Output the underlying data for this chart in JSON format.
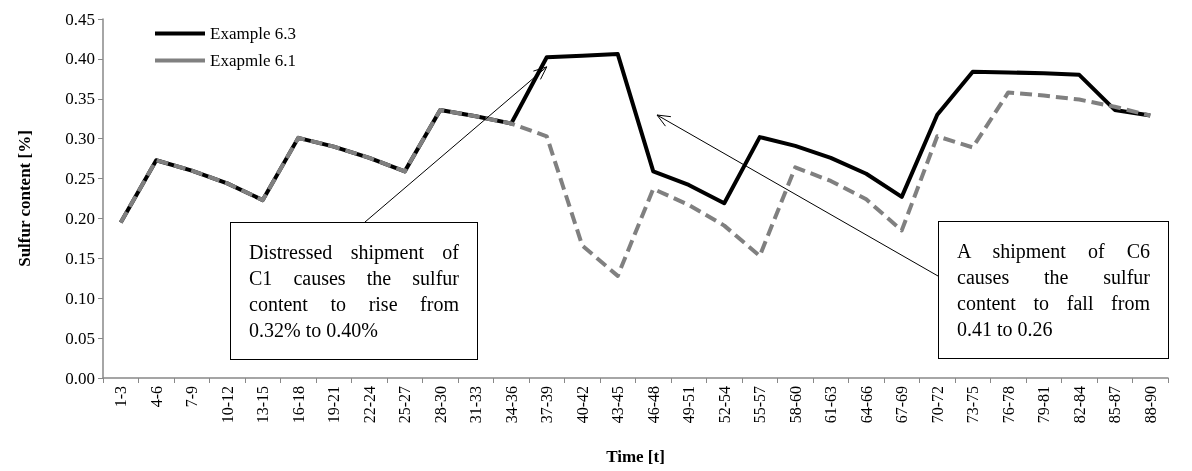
{
  "chart_data": {
    "type": "line",
    "xlabel": "Time [t]",
    "ylabel": "Sulfur content [%]",
    "categories": [
      "1-3",
      "4-6",
      "7-9",
      "10-12",
      "13-15",
      "16-18",
      "19-21",
      "22-24",
      "25-27",
      "28-30",
      "31-33",
      "34-36",
      "37-39",
      "40-42",
      "43-45",
      "46-48",
      "49-51",
      "52-54",
      "55-57",
      "58-60",
      "61-63",
      "64-66",
      "67-69",
      "70-72",
      "73-75",
      "76-78",
      "79-81",
      "82-84",
      "85-87",
      "88-90"
    ],
    "series": [
      {
        "name": "Example 6.3",
        "color": "#000000",
        "line_style": "solid",
        "values": [
          0.195,
          0.273,
          0.26,
          0.244,
          0.223,
          0.301,
          0.29,
          0.276,
          0.259,
          0.336,
          0.328,
          0.319,
          0.402,
          0.404,
          0.406,
          0.259,
          0.242,
          0.219,
          0.302,
          0.291,
          0.276,
          0.256,
          0.227,
          0.33,
          0.384,
          0.383,
          0.382,
          0.38,
          0.336,
          0.329
        ]
      },
      {
        "name": "Exapmle 6.1",
        "color": "#808080",
        "line_style": "dashed",
        "values": [
          0.195,
          0.273,
          0.26,
          0.244,
          0.223,
          0.301,
          0.29,
          0.276,
          0.259,
          0.336,
          0.328,
          0.319,
          0.303,
          0.166,
          0.128,
          0.237,
          0.217,
          0.191,
          0.153,
          0.264,
          0.247,
          0.224,
          0.185,
          0.303,
          0.289,
          0.358,
          0.354,
          0.349,
          0.34,
          0.329
        ]
      }
    ],
    "ylim": [
      0,
      0.45
    ],
    "yticks": [
      {
        "value": 0,
        "label": "0.00"
      },
      {
        "value": 0.05,
        "label": "0.05"
      },
      {
        "value": 0.1,
        "label": "0.10"
      },
      {
        "value": 0.15,
        "label": "0.15"
      },
      {
        "value": 0.2,
        "label": "0.20"
      },
      {
        "value": 0.25,
        "label": "0.25"
      },
      {
        "value": 0.3,
        "label": "0.30"
      },
      {
        "value": 0.35,
        "label": "0.35"
      },
      {
        "value": 0.4,
        "label": "0.40"
      },
      {
        "value": 0.45,
        "label": "0.45"
      }
    ],
    "grid": false,
    "legend": "top left",
    "marker": "none",
    "annotations": [
      {
        "text": "Distressed shipment of C1 causes the sulfur content to rise from 0.32% to 0.40%",
        "x": "37-39",
        "y": 0.39
      },
      "A shipment of C6 causes the sulfur content to fall from 0.41 to 0.26"
    ]
  }
}
